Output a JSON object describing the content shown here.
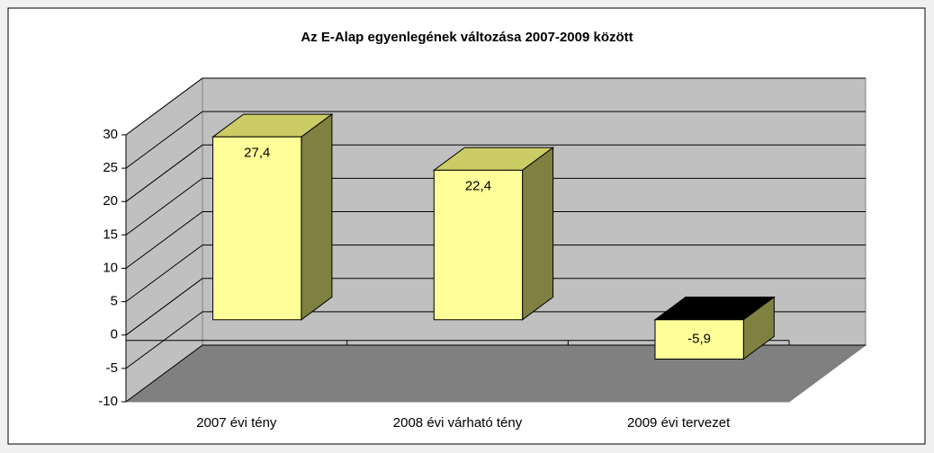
{
  "chart_data": {
    "type": "bar3d",
    "title": "Az E-Alap egyenlegének változása 2007-2009 között",
    "categories": [
      "2007 évi tény",
      "2008 évi várható tény",
      "2009 évi tervezet"
    ],
    "values": [
      27.4,
      22.4,
      -5.9
    ],
    "value_labels": [
      "27,4",
      "22,4",
      "-5,9"
    ],
    "color": "#ffff99",
    "ylim": [
      -10,
      30
    ],
    "yticks": [
      -10,
      -5,
      0,
      5,
      10,
      15,
      20,
      25,
      30
    ],
    "grid": true
  }
}
